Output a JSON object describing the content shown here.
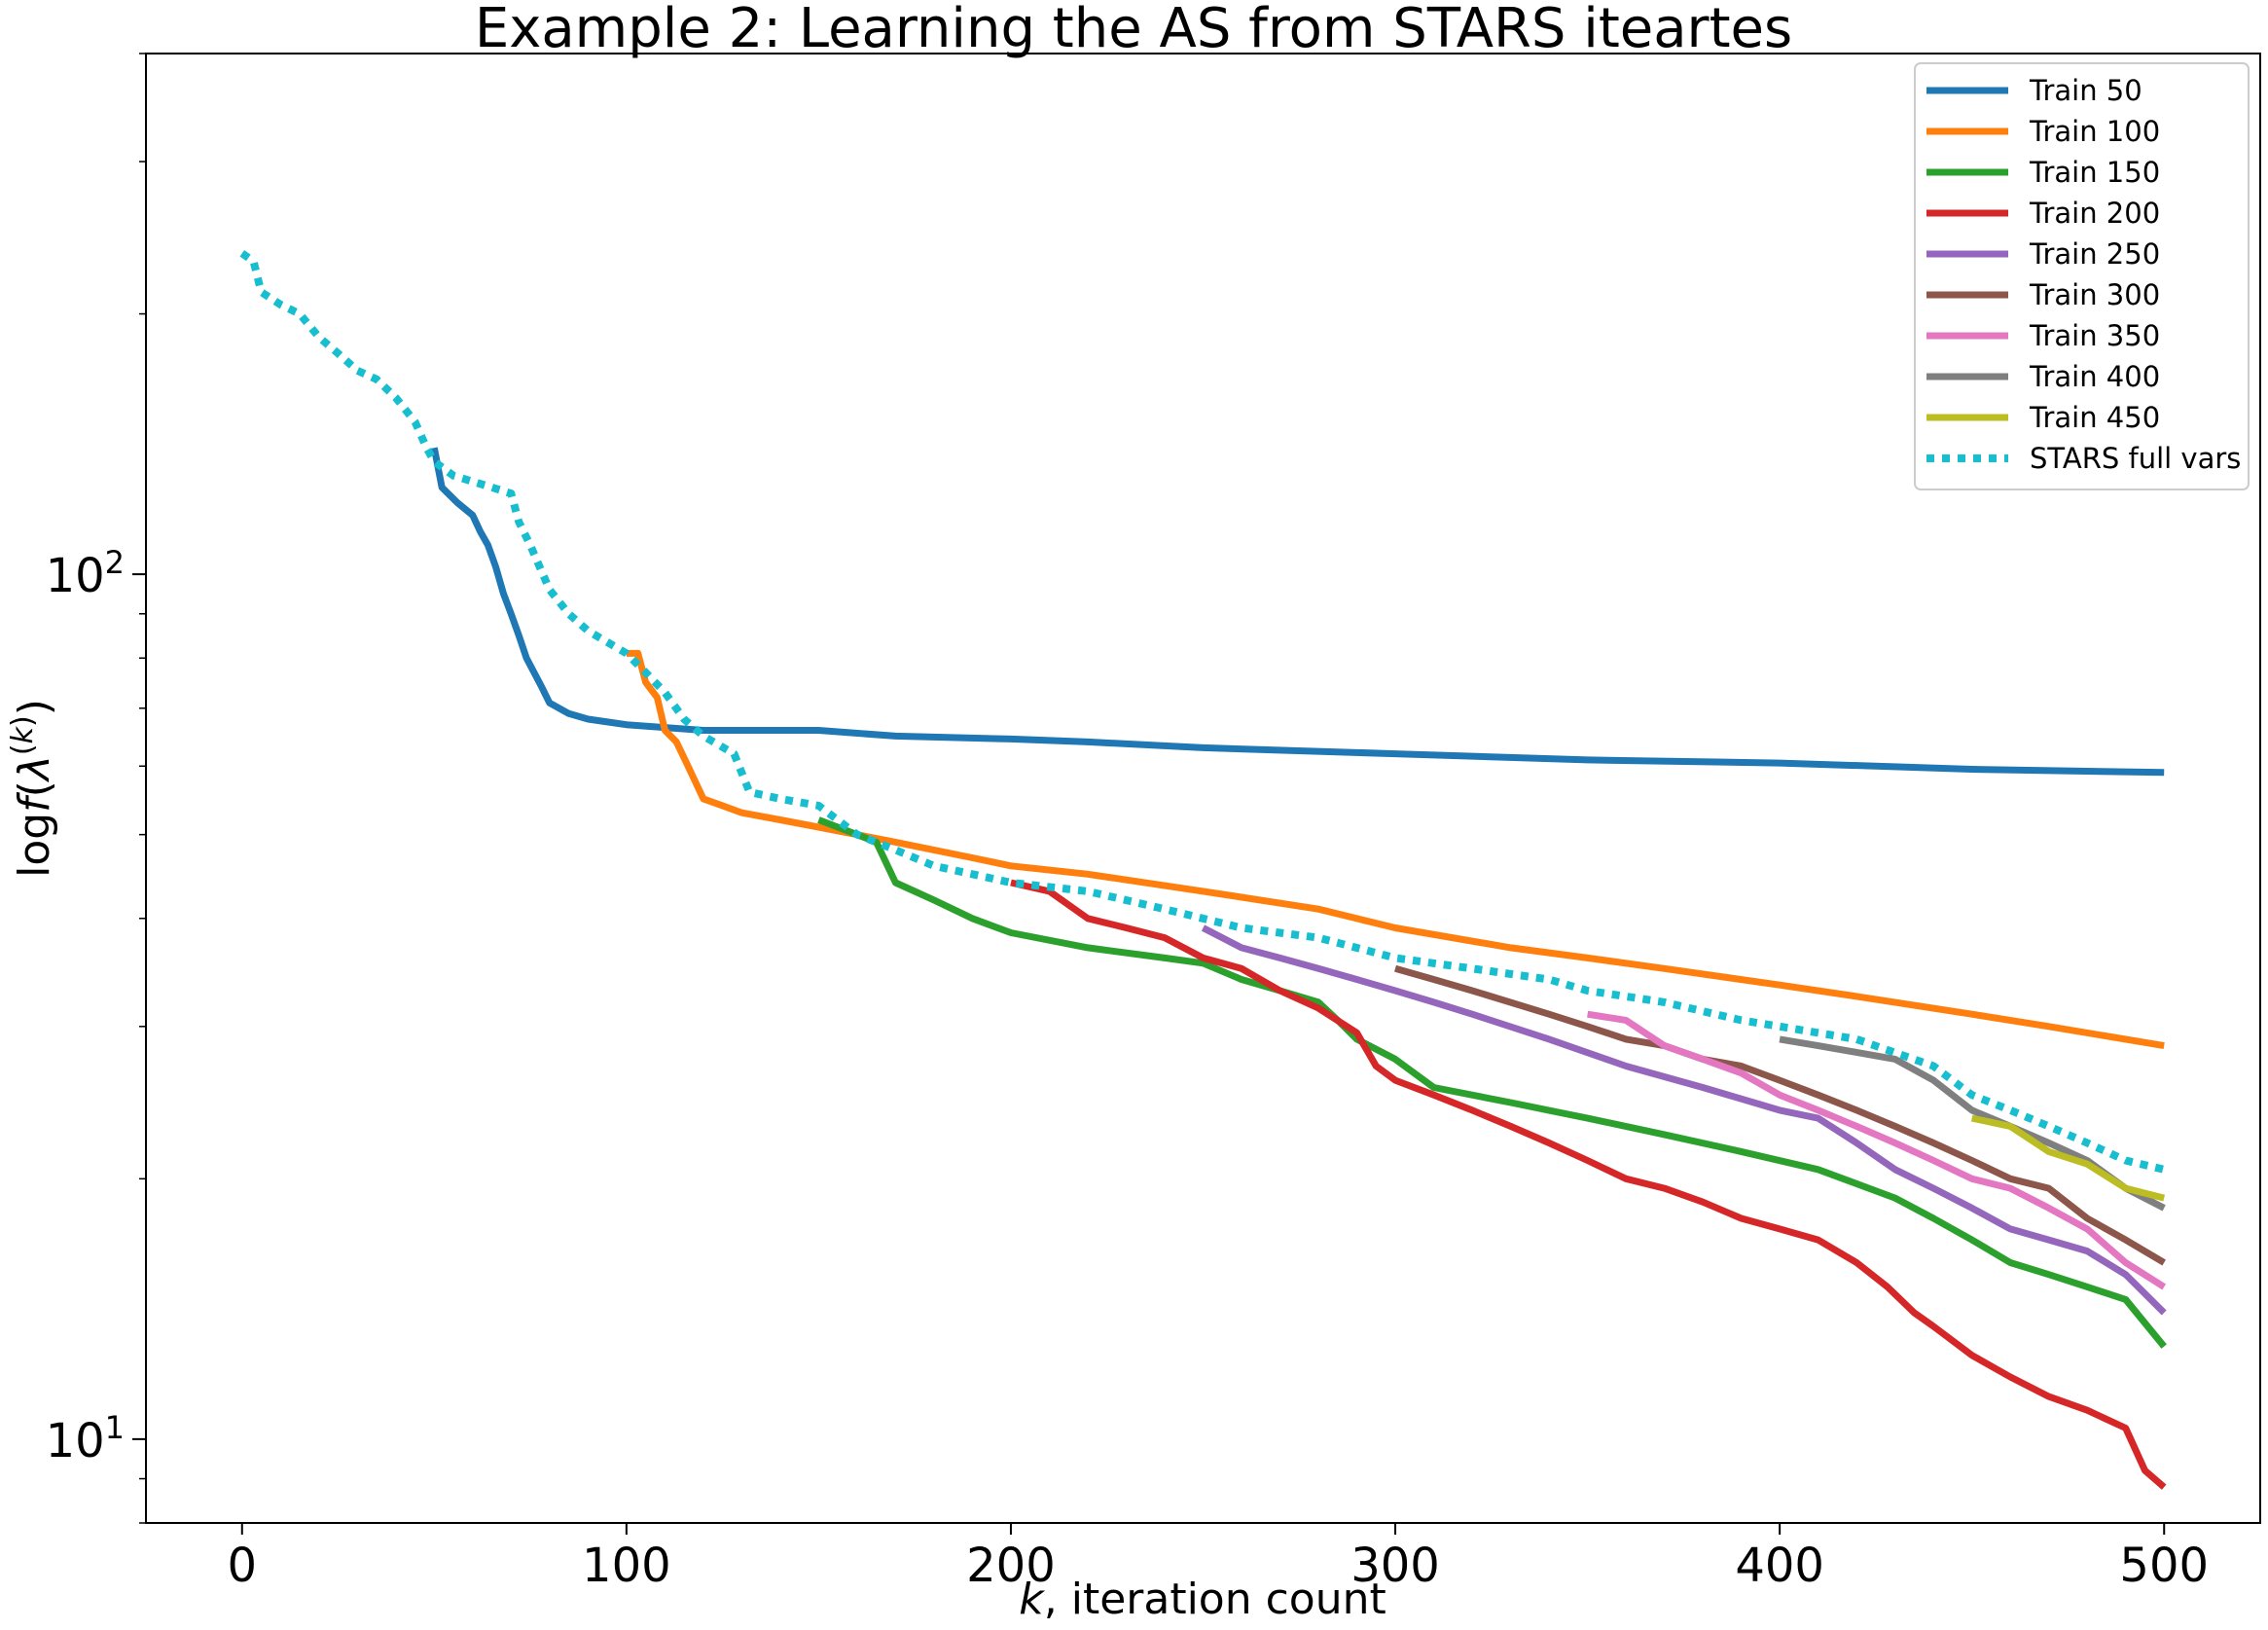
{
  "chart_data": {
    "type": "line",
    "title": "Example 2: Learning the AS from STARS iteartes",
    "xlabel": "k, iteration count",
    "ylabel": "log f(λ^(k))",
    "x_scale": "linear",
    "y_scale": "log",
    "xlim": [
      -25,
      525
    ],
    "ylim": [
      8,
      400
    ],
    "grid": false,
    "legend_position": "top-right",
    "x_ticks": [
      {
        "value": 0,
        "label": "0"
      },
      {
        "value": 100,
        "label": "100"
      },
      {
        "value": 200,
        "label": "200"
      },
      {
        "value": 300,
        "label": "300"
      },
      {
        "value": 400,
        "label": "400"
      },
      {
        "value": 500,
        "label": "500"
      }
    ],
    "y_ticks": [
      {
        "value": 10,
        "base": "10",
        "exp": "1"
      },
      {
        "value": 100,
        "base": "10",
        "exp": "2"
      }
    ],
    "series": [
      {
        "name": "Train 50",
        "color": "#1f77b4",
        "dash": false,
        "points": [
          [
            50,
            140
          ],
          [
            52,
            126
          ],
          [
            56,
            121
          ],
          [
            60,
            117
          ],
          [
            62,
            112
          ],
          [
            64,
            108
          ],
          [
            66,
            102
          ],
          [
            68,
            95
          ],
          [
            70,
            90
          ],
          [
            72,
            85
          ],
          [
            74,
            80
          ],
          [
            78,
            74
          ],
          [
            80,
            71
          ],
          [
            85,
            69
          ],
          [
            90,
            68
          ],
          [
            100,
            67
          ],
          [
            120,
            66
          ],
          [
            150,
            66
          ],
          [
            170,
            65
          ],
          [
            200,
            64.5
          ],
          [
            220,
            64
          ],
          [
            250,
            63
          ],
          [
            300,
            62
          ],
          [
            350,
            61
          ],
          [
            400,
            60.5
          ],
          [
            450,
            59.5
          ],
          [
            500,
            59
          ]
        ]
      },
      {
        "name": "Train 100",
        "color": "#ff7f0e",
        "dash": false,
        "points": [
          [
            100,
            81
          ],
          [
            103,
            81
          ],
          [
            105,
            75
          ],
          [
            108,
            72
          ],
          [
            110,
            66
          ],
          [
            113,
            64
          ],
          [
            116,
            60
          ],
          [
            120,
            55
          ],
          [
            125,
            54
          ],
          [
            130,
            53
          ],
          [
            140,
            52
          ],
          [
            150,
            51
          ],
          [
            170,
            49
          ],
          [
            190,
            47
          ],
          [
            200,
            46
          ],
          [
            220,
            45
          ],
          [
            250,
            43
          ],
          [
            280,
            41
          ],
          [
            300,
            39
          ],
          [
            330,
            37
          ],
          [
            350,
            36
          ],
          [
            370,
            35
          ],
          [
            400,
            33.5
          ],
          [
            420,
            32.5
          ],
          [
            450,
            31
          ],
          [
            470,
            30
          ],
          [
            500,
            28.5
          ]
        ]
      },
      {
        "name": "Train 150",
        "color": "#2ca02c",
        "dash": false,
        "points": [
          [
            150,
            52
          ],
          [
            160,
            50
          ],
          [
            165,
            49
          ],
          [
            170,
            44
          ],
          [
            180,
            42
          ],
          [
            190,
            40
          ],
          [
            200,
            38.5
          ],
          [
            220,
            37
          ],
          [
            240,
            36
          ],
          [
            250,
            35.5
          ],
          [
            260,
            34
          ],
          [
            270,
            33
          ],
          [
            280,
            32
          ],
          [
            285,
            30.5
          ],
          [
            290,
            29
          ],
          [
            300,
            27.5
          ],
          [
            310,
            25.5
          ],
          [
            330,
            24.5
          ],
          [
            350,
            23.5
          ],
          [
            370,
            22.5
          ],
          [
            390,
            21.5
          ],
          [
            410,
            20.5
          ],
          [
            430,
            19
          ],
          [
            440,
            18
          ],
          [
            450,
            17
          ],
          [
            460,
            16
          ],
          [
            470,
            15.5
          ],
          [
            480,
            15
          ],
          [
            490,
            14.5
          ],
          [
            500,
            12.8
          ]
        ]
      },
      {
        "name": "Train 200",
        "color": "#d62728",
        "dash": false,
        "points": [
          [
            200,
            44
          ],
          [
            210,
            43
          ],
          [
            220,
            40
          ],
          [
            230,
            39
          ],
          [
            240,
            38
          ],
          [
            250,
            36
          ],
          [
            260,
            35
          ],
          [
            270,
            33
          ],
          [
            280,
            31.5
          ],
          [
            290,
            29.5
          ],
          [
            295,
            27
          ],
          [
            300,
            26
          ],
          [
            310,
            25
          ],
          [
            320,
            24
          ],
          [
            330,
            23
          ],
          [
            340,
            22
          ],
          [
            350,
            21
          ],
          [
            360,
            20
          ],
          [
            370,
            19.5
          ],
          [
            380,
            18.8
          ],
          [
            390,
            18
          ],
          [
            400,
            17.5
          ],
          [
            410,
            17
          ],
          [
            420,
            16
          ],
          [
            428,
            15
          ],
          [
            435,
            14
          ],
          [
            440,
            13.5
          ],
          [
            450,
            12.5
          ],
          [
            460,
            11.8
          ],
          [
            470,
            11.2
          ],
          [
            480,
            10.8
          ],
          [
            490,
            10.3
          ],
          [
            495,
            9.2
          ],
          [
            500,
            8.8
          ]
        ]
      },
      {
        "name": "Train 250",
        "color": "#9467bd",
        "dash": false,
        "points": [
          [
            250,
            39
          ],
          [
            260,
            37
          ],
          [
            270,
            36
          ],
          [
            280,
            35
          ],
          [
            290,
            34
          ],
          [
            300,
            33
          ],
          [
            310,
            32
          ],
          [
            320,
            31
          ],
          [
            340,
            29
          ],
          [
            360,
            27
          ],
          [
            380,
            25.5
          ],
          [
            400,
            24
          ],
          [
            410,
            23.5
          ],
          [
            420,
            22
          ],
          [
            430,
            20.5
          ],
          [
            440,
            19.5
          ],
          [
            450,
            18.5
          ],
          [
            460,
            17.5
          ],
          [
            470,
            17
          ],
          [
            480,
            16.5
          ],
          [
            490,
            15.5
          ],
          [
            500,
            14
          ]
        ]
      },
      {
        "name": "Train 300",
        "color": "#8c564b",
        "dash": false,
        "points": [
          [
            300,
            35
          ],
          [
            310,
            34
          ],
          [
            320,
            33
          ],
          [
            340,
            31
          ],
          [
            350,
            30
          ],
          [
            360,
            29
          ],
          [
            370,
            28.5
          ],
          [
            380,
            27.5
          ],
          [
            390,
            27
          ],
          [
            400,
            26
          ],
          [
            410,
            25
          ],
          [
            420,
            24
          ],
          [
            430,
            23
          ],
          [
            440,
            22
          ],
          [
            450,
            21
          ],
          [
            460,
            20
          ],
          [
            470,
            19.5
          ],
          [
            480,
            18
          ],
          [
            490,
            17
          ],
          [
            500,
            16
          ]
        ]
      },
      {
        "name": "Train 350",
        "color": "#e377c2",
        "dash": false,
        "points": [
          [
            350,
            31
          ],
          [
            360,
            30.5
          ],
          [
            370,
            28.5
          ],
          [
            380,
            27.5
          ],
          [
            390,
            26.5
          ],
          [
            400,
            25
          ],
          [
            410,
            24
          ],
          [
            420,
            23
          ],
          [
            430,
            22
          ],
          [
            440,
            21
          ],
          [
            450,
            20
          ],
          [
            460,
            19.5
          ],
          [
            470,
            18.5
          ],
          [
            480,
            17.5
          ],
          [
            490,
            16
          ],
          [
            500,
            15
          ]
        ]
      },
      {
        "name": "Train 400",
        "color": "#7f7f7f",
        "dash": false,
        "points": [
          [
            400,
            29
          ],
          [
            410,
            28.5
          ],
          [
            420,
            28
          ],
          [
            430,
            27.5
          ],
          [
            440,
            26
          ],
          [
            450,
            24
          ],
          [
            460,
            23
          ],
          [
            470,
            22
          ],
          [
            480,
            21
          ],
          [
            490,
            19.5
          ],
          [
            500,
            18.5
          ]
        ]
      },
      {
        "name": "Train 450",
        "color": "#bcbd22",
        "dash": false,
        "points": [
          [
            450,
            23.5
          ],
          [
            460,
            23
          ],
          [
            470,
            21.5
          ],
          [
            480,
            20.8
          ],
          [
            490,
            19.5
          ],
          [
            500,
            19
          ]
        ]
      },
      {
        "name": "STARS full vars",
        "color": "#17becf",
        "dash": true,
        "points": [
          [
            0,
            235
          ],
          [
            3,
            230
          ],
          [
            5,
            212
          ],
          [
            10,
            205
          ],
          [
            15,
            200
          ],
          [
            20,
            188
          ],
          [
            25,
            180
          ],
          [
            30,
            172
          ],
          [
            35,
            168
          ],
          [
            40,
            160
          ],
          [
            45,
            150
          ],
          [
            48,
            140
          ],
          [
            50,
            135
          ],
          [
            55,
            130
          ],
          [
            60,
            128
          ],
          [
            65,
            126
          ],
          [
            70,
            124
          ],
          [
            72,
            115
          ],
          [
            75,
            108
          ],
          [
            80,
            96
          ],
          [
            85,
            90
          ],
          [
            90,
            86
          ],
          [
            100,
            81
          ],
          [
            105,
            77
          ],
          [
            110,
            73
          ],
          [
            115,
            68
          ],
          [
            120,
            65
          ],
          [
            128,
            62
          ],
          [
            132,
            56
          ],
          [
            140,
            55
          ],
          [
            150,
            54
          ],
          [
            160,
            50
          ],
          [
            170,
            48
          ],
          [
            180,
            46
          ],
          [
            190,
            45
          ],
          [
            200,
            44
          ],
          [
            220,
            43
          ],
          [
            240,
            41
          ],
          [
            260,
            39
          ],
          [
            280,
            38
          ],
          [
            300,
            36
          ],
          [
            320,
            35
          ],
          [
            340,
            34
          ],
          [
            350,
            33
          ],
          [
            370,
            32
          ],
          [
            390,
            30.5
          ],
          [
            400,
            30
          ],
          [
            420,
            29
          ],
          [
            440,
            27
          ],
          [
            450,
            25
          ],
          [
            460,
            24
          ],
          [
            470,
            23
          ],
          [
            480,
            22
          ],
          [
            490,
            21
          ],
          [
            500,
            20.5
          ]
        ]
      }
    ]
  }
}
